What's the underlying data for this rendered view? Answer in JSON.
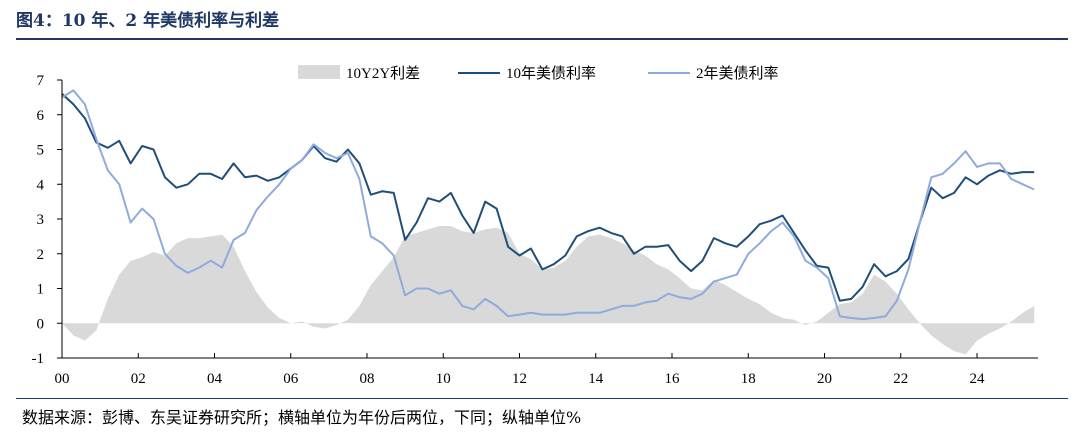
{
  "title": "图4：10 年、2 年美债利率与利差",
  "source": "数据来源：彭博、东吴证券研究所；横轴单位为年份后两位，下同；纵轴单位%",
  "chart_data": {
    "type": "line",
    "title": "图4：10 年、2 年美债利率与利差",
    "xlabel": "",
    "ylabel": "",
    "xlim": [
      2000,
      2025.6
    ],
    "ylim": [
      -1,
      7
    ],
    "y_ticks": [
      -1,
      0,
      1,
      2,
      3,
      4,
      5,
      6,
      7
    ],
    "x_ticks": [
      {
        "value": 2000,
        "label": "00"
      },
      {
        "value": 2002,
        "label": "02"
      },
      {
        "value": 2004,
        "label": "04"
      },
      {
        "value": 2006,
        "label": "06"
      },
      {
        "value": 2008,
        "label": "08"
      },
      {
        "value": 2010,
        "label": "10"
      },
      {
        "value": 2012,
        "label": "12"
      },
      {
        "value": 2014,
        "label": "14"
      },
      {
        "value": 2016,
        "label": "16"
      },
      {
        "value": 2018,
        "label": "18"
      },
      {
        "value": 2020,
        "label": "20"
      },
      {
        "value": 2022,
        "label": "22"
      },
      {
        "value": 2024,
        "label": "24"
      }
    ],
    "legend_position": "top",
    "grid": false,
    "series": [
      {
        "name": "10Y2Y利差",
        "kind": "area",
        "color": "#d9d9d9",
        "x": [
          2000.0,
          2000.3,
          2000.6,
          2000.9,
          2001.2,
          2001.5,
          2001.8,
          2002.1,
          2002.4,
          2002.7,
          2003.0,
          2003.3,
          2003.6,
          2003.9,
          2004.2,
          2004.5,
          2004.8,
          2005.1,
          2005.4,
          2005.7,
          2006.0,
          2006.3,
          2006.6,
          2006.9,
          2007.2,
          2007.5,
          2007.8,
          2008.1,
          2008.4,
          2008.7,
          2009.0,
          2009.3,
          2009.6,
          2009.9,
          2010.2,
          2010.5,
          2010.8,
          2011.1,
          2011.4,
          2011.7,
          2012.0,
          2012.3,
          2012.6,
          2012.9,
          2013.2,
          2013.5,
          2013.8,
          2014.1,
          2014.4,
          2014.7,
          2015.0,
          2015.3,
          2015.6,
          2015.9,
          2016.2,
          2016.5,
          2016.8,
          2017.1,
          2017.4,
          2017.7,
          2018.0,
          2018.3,
          2018.6,
          2018.9,
          2019.2,
          2019.5,
          2019.8,
          2020.1,
          2020.4,
          2020.7,
          2021.0,
          2021.3,
          2021.6,
          2021.9,
          2022.2,
          2022.5,
          2022.8,
          2023.1,
          2023.4,
          2023.7,
          2024.0,
          2024.3,
          2024.6,
          2024.9,
          2025.2,
          2025.5
        ],
        "values": [
          0.0,
          -0.35,
          -0.5,
          -0.2,
          0.7,
          1.4,
          1.8,
          1.9,
          2.05,
          1.95,
          2.3,
          2.45,
          2.45,
          2.5,
          2.55,
          2.2,
          1.5,
          0.9,
          0.45,
          0.15,
          0.0,
          0.05,
          -0.1,
          -0.15,
          -0.05,
          0.1,
          0.5,
          1.1,
          1.5,
          1.9,
          2.5,
          2.6,
          2.7,
          2.8,
          2.8,
          2.65,
          2.6,
          2.7,
          2.75,
          2.6,
          2.0,
          1.85,
          1.55,
          1.6,
          1.8,
          2.2,
          2.5,
          2.55,
          2.45,
          2.3,
          2.1,
          1.95,
          1.7,
          1.55,
          1.3,
          1.0,
          0.95,
          1.25,
          1.1,
          0.9,
          0.7,
          0.55,
          0.3,
          0.15,
          0.1,
          -0.05,
          0.05,
          0.3,
          0.55,
          0.6,
          0.85,
          1.4,
          1.2,
          0.85,
          0.4,
          0.0,
          -0.35,
          -0.6,
          -0.8,
          -0.9,
          -0.5,
          -0.3,
          -0.15,
          0.05,
          0.3,
          0.5
        ]
      },
      {
        "name": "10年美债利率",
        "kind": "line",
        "color": "#1f4e79",
        "x": [
          2000.0,
          2000.3,
          2000.6,
          2000.9,
          2001.2,
          2001.5,
          2001.8,
          2002.1,
          2002.4,
          2002.7,
          2003.0,
          2003.3,
          2003.6,
          2003.9,
          2004.2,
          2004.5,
          2004.8,
          2005.1,
          2005.4,
          2005.7,
          2006.0,
          2006.3,
          2006.6,
          2006.9,
          2007.2,
          2007.5,
          2007.8,
          2008.1,
          2008.4,
          2008.7,
          2009.0,
          2009.3,
          2009.6,
          2009.9,
          2010.2,
          2010.5,
          2010.8,
          2011.1,
          2011.4,
          2011.7,
          2012.0,
          2012.3,
          2012.6,
          2012.9,
          2013.2,
          2013.5,
          2013.8,
          2014.1,
          2014.4,
          2014.7,
          2015.0,
          2015.3,
          2015.6,
          2015.9,
          2016.2,
          2016.5,
          2016.8,
          2017.1,
          2017.4,
          2017.7,
          2018.0,
          2018.3,
          2018.6,
          2018.9,
          2019.2,
          2019.5,
          2019.8,
          2020.1,
          2020.4,
          2020.7,
          2021.0,
          2021.3,
          2021.6,
          2021.9,
          2022.2,
          2022.5,
          2022.8,
          2023.1,
          2023.4,
          2023.7,
          2024.0,
          2024.3,
          2024.6,
          2024.9,
          2025.2,
          2025.5
        ],
        "values": [
          6.6,
          6.3,
          5.9,
          5.2,
          5.05,
          5.25,
          4.6,
          5.1,
          5.0,
          4.2,
          3.9,
          4.0,
          4.3,
          4.3,
          4.15,
          4.6,
          4.2,
          4.25,
          4.1,
          4.2,
          4.45,
          4.7,
          5.1,
          4.75,
          4.65,
          5.0,
          4.6,
          3.7,
          3.8,
          3.75,
          2.4,
          2.9,
          3.6,
          3.5,
          3.75,
          3.1,
          2.6,
          3.5,
          3.3,
          2.2,
          1.95,
          2.15,
          1.55,
          1.7,
          1.95,
          2.5,
          2.65,
          2.75,
          2.6,
          2.5,
          2.0,
          2.2,
          2.2,
          2.25,
          1.8,
          1.5,
          1.8,
          2.45,
          2.3,
          2.2,
          2.5,
          2.85,
          2.95,
          3.1,
          2.6,
          2.1,
          1.65,
          1.6,
          0.65,
          0.7,
          1.05,
          1.7,
          1.35,
          1.5,
          1.85,
          2.9,
          3.9,
          3.6,
          3.75,
          4.2,
          4.0,
          4.25,
          4.4,
          4.3,
          4.35,
          4.35
        ]
      },
      {
        "name": "2年美债利率",
        "kind": "line",
        "color": "#8faadc",
        "x": [
          2000.0,
          2000.3,
          2000.6,
          2000.9,
          2001.2,
          2001.5,
          2001.8,
          2002.1,
          2002.4,
          2002.7,
          2003.0,
          2003.3,
          2003.6,
          2003.9,
          2004.2,
          2004.5,
          2004.8,
          2005.1,
          2005.4,
          2005.7,
          2006.0,
          2006.3,
          2006.6,
          2006.9,
          2007.2,
          2007.5,
          2007.8,
          2008.1,
          2008.4,
          2008.7,
          2009.0,
          2009.3,
          2009.6,
          2009.9,
          2010.2,
          2010.5,
          2010.8,
          2011.1,
          2011.4,
          2011.7,
          2012.0,
          2012.3,
          2012.6,
          2012.9,
          2013.2,
          2013.5,
          2013.8,
          2014.1,
          2014.4,
          2014.7,
          2015.0,
          2015.3,
          2015.6,
          2015.9,
          2016.2,
          2016.5,
          2016.8,
          2017.1,
          2017.4,
          2017.7,
          2018.0,
          2018.3,
          2018.6,
          2018.9,
          2019.2,
          2019.5,
          2019.8,
          2020.1,
          2020.4,
          2020.7,
          2021.0,
          2021.3,
          2021.6,
          2021.9,
          2022.2,
          2022.5,
          2022.8,
          2023.1,
          2023.4,
          2023.7,
          2024.0,
          2024.3,
          2024.6,
          2024.9,
          2025.2,
          2025.5
        ],
        "values": [
          6.5,
          6.7,
          6.3,
          5.3,
          4.4,
          4.0,
          2.9,
          3.3,
          3.0,
          2.0,
          1.65,
          1.45,
          1.6,
          1.8,
          1.6,
          2.4,
          2.6,
          3.25,
          3.65,
          4.0,
          4.45,
          4.7,
          5.15,
          4.9,
          4.75,
          4.9,
          4.15,
          2.5,
          2.3,
          1.95,
          0.8,
          1.0,
          1.0,
          0.85,
          0.95,
          0.5,
          0.4,
          0.7,
          0.5,
          0.2,
          0.25,
          0.3,
          0.25,
          0.25,
          0.25,
          0.3,
          0.3,
          0.3,
          0.4,
          0.5,
          0.5,
          0.6,
          0.65,
          0.85,
          0.75,
          0.7,
          0.85,
          1.2,
          1.3,
          1.4,
          2.0,
          2.3,
          2.65,
          2.9,
          2.5,
          1.8,
          1.6,
          1.3,
          0.2,
          0.15,
          0.12,
          0.15,
          0.2,
          0.65,
          1.55,
          2.9,
          4.2,
          4.3,
          4.6,
          4.95,
          4.5,
          4.6,
          4.6,
          4.15,
          4.0,
          3.85
        ]
      }
    ]
  }
}
